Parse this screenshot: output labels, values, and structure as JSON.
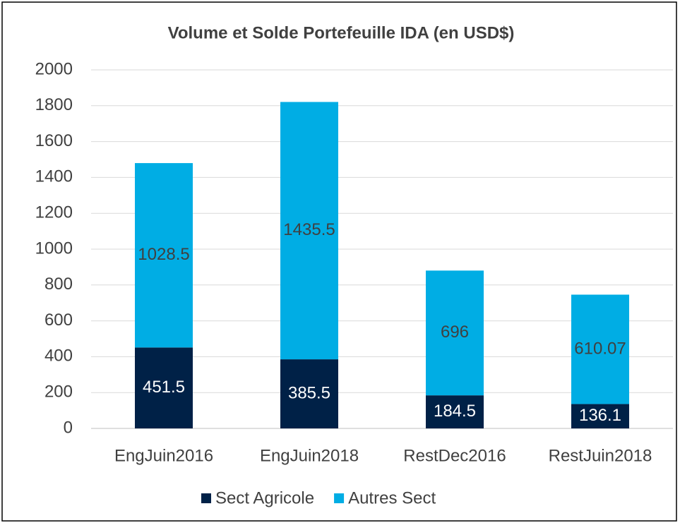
{
  "chart_data": {
    "type": "bar",
    "stacked": true,
    "title": "Volume et Solde Portefeuille IDA  (en USD$)",
    "categories": [
      "EngJuin2016",
      "EngJuin2018",
      "RestDec2016",
      "RestJuin2018"
    ],
    "series": [
      {
        "name": "Sect Agricole",
        "color": "#002147",
        "label_color": "#ffffff",
        "values": [
          451.5,
          385.5,
          184.5,
          136.1
        ]
      },
      {
        "name": "Autres Sect",
        "color": "#00ade4",
        "label_color": "#404040",
        "values": [
          1028.5,
          1435.5,
          696,
          610.07
        ]
      }
    ],
    "ylim": [
      0,
      2000
    ],
    "yticks": [
      0,
      200,
      400,
      600,
      800,
      1000,
      1200,
      1400,
      1600,
      1800,
      2000
    ],
    "grid": true,
    "legend": "bottom"
  }
}
